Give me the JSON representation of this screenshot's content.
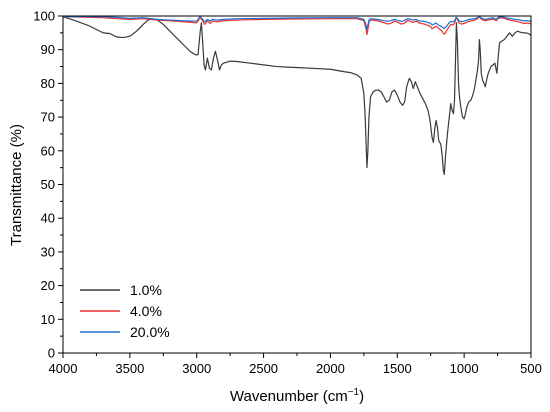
{
  "chart_data": {
    "type": "line",
    "title": "",
    "xlabel": "Wavenumber (cm",
    "xlabel_sup": "−1",
    "xlabel_suffix": ")",
    "ylabel": "Transmittance (%)",
    "xlim": [
      4000,
      500
    ],
    "ylim": [
      0,
      100
    ],
    "x_reversed": true,
    "xticks": [
      4000,
      3500,
      3000,
      2500,
      2000,
      1500,
      1000,
      500
    ],
    "yticks": [
      0,
      10,
      20,
      30,
      40,
      50,
      60,
      70,
      80,
      90,
      100
    ],
    "grid": false,
    "legend_position": "bottom-left",
    "series": [
      {
        "name": "1.0%",
        "color": "#3a3a3a",
        "points": [
          [
            4000,
            99.8
          ],
          [
            3900,
            98.5
          ],
          [
            3800,
            97.0
          ],
          [
            3700,
            95.0
          ],
          [
            3650,
            94.8
          ],
          [
            3600,
            93.8
          ],
          [
            3550,
            93.6
          ],
          [
            3500,
            94.0
          ],
          [
            3450,
            95.5
          ],
          [
            3400,
            97.5
          ],
          [
            3370,
            98.6
          ],
          [
            3340,
            99.2
          ],
          [
            3300,
            99.0
          ],
          [
            3250,
            97.5
          ],
          [
            3200,
            95.5
          ],
          [
            3150,
            93.5
          ],
          [
            3100,
            91.5
          ],
          [
            3050,
            89.5
          ],
          [
            3010,
            88.5
          ],
          [
            2990,
            88.5
          ],
          [
            2975,
            95.0
          ],
          [
            2965,
            98.0
          ],
          [
            2955,
            92.0
          ],
          [
            2945,
            85.5
          ],
          [
            2935,
            84.0
          ],
          [
            2920,
            87.5
          ],
          [
            2905,
            84.5
          ],
          [
            2890,
            84.0
          ],
          [
            2875,
            87.5
          ],
          [
            2860,
            89.5
          ],
          [
            2845,
            87.0
          ],
          [
            2830,
            84.0
          ],
          [
            2815,
            85.5
          ],
          [
            2800,
            86.0
          ],
          [
            2750,
            86.6
          ],
          [
            2700,
            86.5
          ],
          [
            2600,
            86.0
          ],
          [
            2500,
            85.5
          ],
          [
            2400,
            85.0
          ],
          [
            2300,
            84.8
          ],
          [
            2200,
            84.6
          ],
          [
            2100,
            84.4
          ],
          [
            2000,
            84.2
          ],
          [
            1900,
            83.5
          ],
          [
            1850,
            83.2
          ],
          [
            1800,
            82.5
          ],
          [
            1770,
            81.5
          ],
          [
            1750,
            77.0
          ],
          [
            1740,
            70.0
          ],
          [
            1733,
            62.0
          ],
          [
            1727,
            55.0
          ],
          [
            1720,
            60.0
          ],
          [
            1712,
            70.0
          ],
          [
            1700,
            76.0
          ],
          [
            1680,
            77.5
          ],
          [
            1660,
            78.0
          ],
          [
            1640,
            78.0
          ],
          [
            1620,
            77.5
          ],
          [
            1600,
            76.0
          ],
          [
            1580,
            74.5
          ],
          [
            1560,
            75.0
          ],
          [
            1540,
            77.5
          ],
          [
            1520,
            78.0
          ],
          [
            1500,
            76.5
          ],
          [
            1480,
            74.5
          ],
          [
            1460,
            73.5
          ],
          [
            1445,
            74.5
          ],
          [
            1430,
            79.0
          ],
          [
            1410,
            81.5
          ],
          [
            1395,
            80.5
          ],
          [
            1380,
            78.5
          ],
          [
            1365,
            80.5
          ],
          [
            1350,
            79.0
          ],
          [
            1330,
            77.0
          ],
          [
            1310,
            75.5
          ],
          [
            1290,
            74.0
          ],
          [
            1270,
            72.0
          ],
          [
            1255,
            69.0
          ],
          [
            1240,
            64.0
          ],
          [
            1230,
            62.5
          ],
          [
            1218,
            67.0
          ],
          [
            1210,
            69.0
          ],
          [
            1200,
            67.0
          ],
          [
            1190,
            63.0
          ],
          [
            1175,
            62.0
          ],
          [
            1165,
            59.0
          ],
          [
            1155,
            54.0
          ],
          [
            1148,
            53.0
          ],
          [
            1140,
            58.0
          ],
          [
            1125,
            65.0
          ],
          [
            1110,
            70.5
          ],
          [
            1100,
            74.0
          ],
          [
            1090,
            72.0
          ],
          [
            1080,
            71.0
          ],
          [
            1072,
            75.0
          ],
          [
            1064,
            88.0
          ],
          [
            1058,
            98.0
          ],
          [
            1050,
            92.0
          ],
          [
            1042,
            80.0
          ],
          [
            1035,
            76.0
          ],
          [
            1025,
            73.0
          ],
          [
            1012,
            70.0
          ],
          [
            1000,
            69.5
          ],
          [
            990,
            71.0
          ],
          [
            980,
            73.0
          ],
          [
            965,
            74.5
          ],
          [
            950,
            75.0
          ],
          [
            940,
            76.0
          ],
          [
            925,
            78.0
          ],
          [
            912,
            81.0
          ],
          [
            900,
            84.0
          ],
          [
            892,
            87.0
          ],
          [
            886,
            93.0
          ],
          [
            880,
            90.0
          ],
          [
            872,
            83.0
          ],
          [
            862,
            81.0
          ],
          [
            852,
            80.0
          ],
          [
            842,
            79.0
          ],
          [
            832,
            81.0
          ],
          [
            820,
            83.0
          ],
          [
            800,
            85.0
          ],
          [
            782,
            85.5
          ],
          [
            770,
            86.0
          ],
          [
            755,
            83.0
          ],
          [
            745,
            88.0
          ],
          [
            735,
            92.0
          ],
          [
            720,
            92.5
          ],
          [
            700,
            93.0
          ],
          [
            680,
            94.0
          ],
          [
            660,
            95.0
          ],
          [
            640,
            94.0
          ],
          [
            620,
            95.0
          ],
          [
            600,
            95.5
          ],
          [
            580,
            95.2
          ],
          [
            560,
            95.0
          ],
          [
            540,
            95.0
          ],
          [
            520,
            94.8
          ],
          [
            500,
            94.3
          ]
        ]
      },
      {
        "name": "4.0%",
        "color": "#e8302e",
        "points": [
          [
            4000,
            99.8
          ],
          [
            3700,
            99.5
          ],
          [
            3600,
            99.2
          ],
          [
            3500,
            99.0
          ],
          [
            3400,
            99.2
          ],
          [
            3300,
            98.8
          ],
          [
            3200,
            98.6
          ],
          [
            3100,
            98.3
          ],
          [
            3000,
            98.0
          ],
          [
            2975,
            99.5
          ],
          [
            2955,
            98.5
          ],
          [
            2940,
            97.5
          ],
          [
            2920,
            98.5
          ],
          [
            2900,
            97.8
          ],
          [
            2880,
            98.5
          ],
          [
            2850,
            98.3
          ],
          [
            2800,
            98.6
          ],
          [
            2700,
            98.8
          ],
          [
            2500,
            99.0
          ],
          [
            2300,
            99.1
          ],
          [
            2000,
            99.2
          ],
          [
            1800,
            99.2
          ],
          [
            1750,
            98.6
          ],
          [
            1735,
            96.5
          ],
          [
            1727,
            94.5
          ],
          [
            1720,
            96.0
          ],
          [
            1710,
            98.5
          ],
          [
            1690,
            98.8
          ],
          [
            1650,
            98.6
          ],
          [
            1600,
            98.0
          ],
          [
            1570,
            97.6
          ],
          [
            1550,
            97.8
          ],
          [
            1520,
            98.5
          ],
          [
            1500,
            98.2
          ],
          [
            1470,
            97.6
          ],
          [
            1450,
            97.8
          ],
          [
            1420,
            98.7
          ],
          [
            1400,
            98.4
          ],
          [
            1380,
            98.1
          ],
          [
            1360,
            98.5
          ],
          [
            1340,
            98.0
          ],
          [
            1300,
            97.6
          ],
          [
            1270,
            97.2
          ],
          [
            1250,
            96.8
          ],
          [
            1240,
            96.2
          ],
          [
            1225,
            96.6
          ],
          [
            1210,
            97.0
          ],
          [
            1190,
            96.3
          ],
          [
            1170,
            95.7
          ],
          [
            1150,
            94.6
          ],
          [
            1140,
            95.0
          ],
          [
            1120,
            96.4
          ],
          [
            1100,
            97.5
          ],
          [
            1085,
            97.3
          ],
          [
            1070,
            98.0
          ],
          [
            1060,
            99.5
          ],
          [
            1050,
            99.0
          ],
          [
            1040,
            98.0
          ],
          [
            1020,
            97.6
          ],
          [
            1000,
            97.8
          ],
          [
            980,
            98.2
          ],
          [
            960,
            98.5
          ],
          [
            940,
            98.6
          ],
          [
            920,
            98.8
          ],
          [
            900,
            99.2
          ],
          [
            886,
            99.8
          ],
          [
            875,
            99.2
          ],
          [
            860,
            98.8
          ],
          [
            840,
            98.6
          ],
          [
            820,
            98.8
          ],
          [
            800,
            99.0
          ],
          [
            780,
            99.1
          ],
          [
            760,
            98.6
          ],
          [
            745,
            99.3
          ],
          [
            720,
            99.5
          ],
          [
            700,
            99.3
          ],
          [
            680,
            99.0
          ],
          [
            650,
            98.7
          ],
          [
            620,
            98.5
          ],
          [
            600,
            98.3
          ],
          [
            570,
            98.0
          ],
          [
            550,
            97.8
          ],
          [
            520,
            97.9
          ],
          [
            500,
            97.6
          ]
        ]
      },
      {
        "name": "20.0%",
        "color": "#1f6fd1",
        "points": [
          [
            4000,
            99.8
          ],
          [
            3700,
            99.8
          ],
          [
            3600,
            99.6
          ],
          [
            3500,
            99.3
          ],
          [
            3400,
            99.5
          ],
          [
            3300,
            99.0
          ],
          [
            3200,
            98.8
          ],
          [
            3100,
            98.6
          ],
          [
            3000,
            98.5
          ],
          [
            2975,
            99.8
          ],
          [
            2955,
            99.0
          ],
          [
            2940,
            98.3
          ],
          [
            2920,
            99.0
          ],
          [
            2900,
            98.5
          ],
          [
            2880,
            99.0
          ],
          [
            2850,
            98.8
          ],
          [
            2800,
            99.0
          ],
          [
            2700,
            99.2
          ],
          [
            2500,
            99.3
          ],
          [
            2300,
            99.4
          ],
          [
            2000,
            99.5
          ],
          [
            1800,
            99.5
          ],
          [
            1750,
            99.0
          ],
          [
            1735,
            97.5
          ],
          [
            1727,
            96.0
          ],
          [
            1720,
            97.3
          ],
          [
            1710,
            99.0
          ],
          [
            1690,
            99.2
          ],
          [
            1650,
            99.0
          ],
          [
            1600,
            98.6
          ],
          [
            1570,
            98.4
          ],
          [
            1550,
            98.6
          ],
          [
            1520,
            99.0
          ],
          [
            1500,
            98.8
          ],
          [
            1470,
            98.4
          ],
          [
            1450,
            98.6
          ],
          [
            1420,
            99.2
          ],
          [
            1400,
            99.0
          ],
          [
            1380,
            98.8
          ],
          [
            1360,
            99.0
          ],
          [
            1340,
            98.6
          ],
          [
            1300,
            98.4
          ],
          [
            1270,
            98.1
          ],
          [
            1250,
            97.8
          ],
          [
            1240,
            97.3
          ],
          [
            1225,
            97.6
          ],
          [
            1210,
            97.9
          ],
          [
            1190,
            97.3
          ],
          [
            1170,
            96.9
          ],
          [
            1150,
            96.3
          ],
          [
            1140,
            96.6
          ],
          [
            1120,
            97.6
          ],
          [
            1100,
            98.4
          ],
          [
            1085,
            98.2
          ],
          [
            1070,
            98.7
          ],
          [
            1060,
            99.6
          ],
          [
            1050,
            99.3
          ],
          [
            1040,
            98.6
          ],
          [
            1020,
            98.3
          ],
          [
            1000,
            98.5
          ],
          [
            980,
            98.8
          ],
          [
            960,
            99.0
          ],
          [
            940,
            99.1
          ],
          [
            920,
            99.2
          ],
          [
            900,
            99.5
          ],
          [
            886,
            99.9
          ],
          [
            875,
            99.5
          ],
          [
            860,
            99.2
          ],
          [
            840,
            99.0
          ],
          [
            820,
            99.2
          ],
          [
            800,
            99.4
          ],
          [
            780,
            99.4
          ],
          [
            760,
            99.0
          ],
          [
            745,
            99.6
          ],
          [
            720,
            99.8
          ],
          [
            700,
            99.6
          ],
          [
            680,
            99.4
          ],
          [
            650,
            99.2
          ],
          [
            620,
            99.0
          ],
          [
            600,
            98.9
          ],
          [
            570,
            98.7
          ],
          [
            550,
            98.6
          ],
          [
            520,
            98.6
          ],
          [
            500,
            98.4
          ]
        ]
      }
    ]
  }
}
